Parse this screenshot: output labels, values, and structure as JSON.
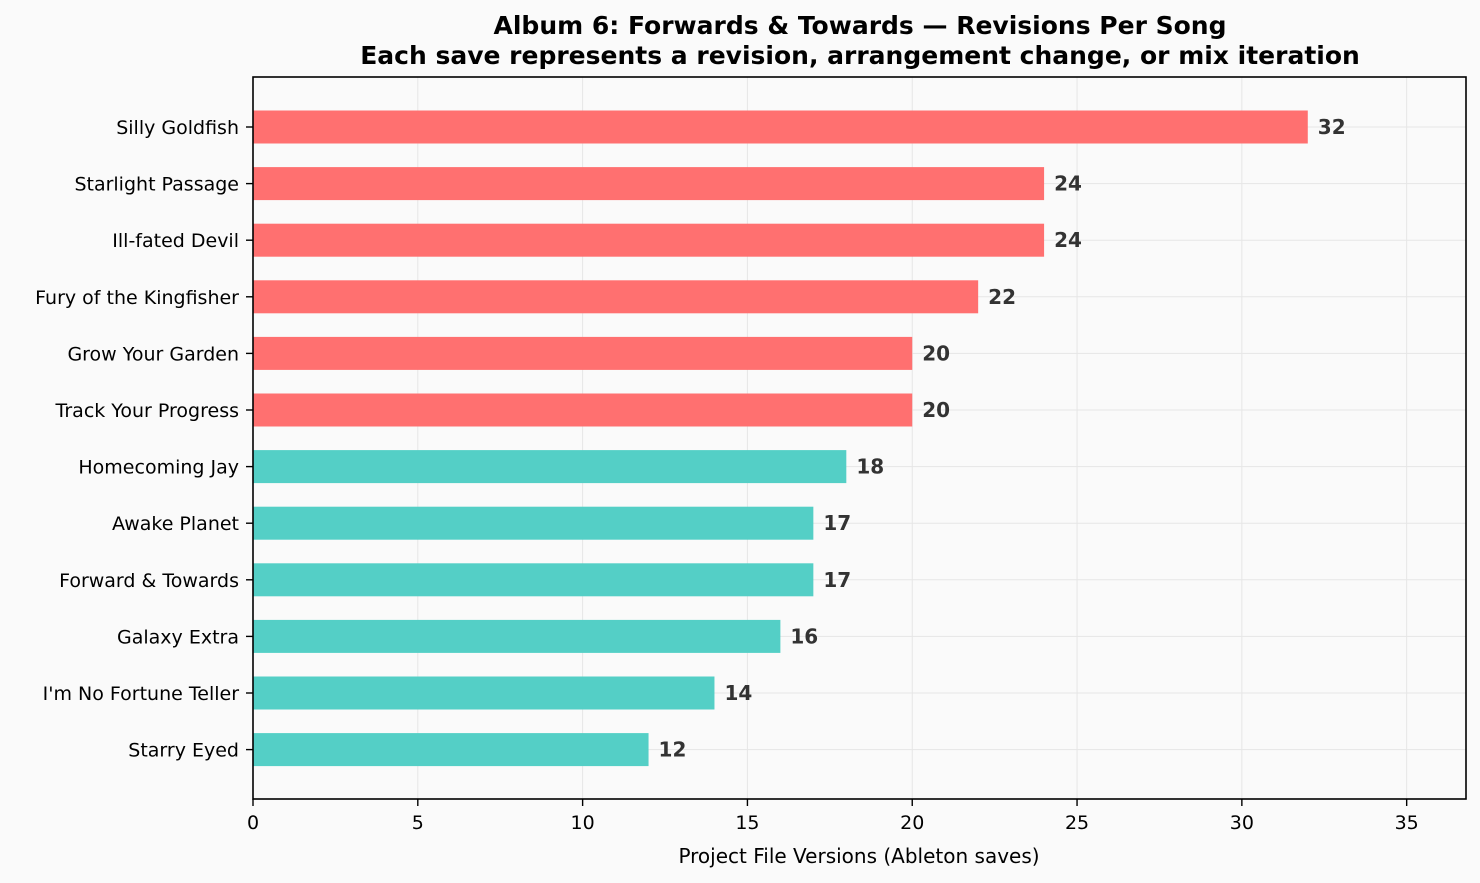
{
  "chart_data": {
    "type": "bar",
    "orientation": "horizontal",
    "title": "Album 6: Forwards & Towards — Revisions Per Song",
    "subtitle": "Each save represents a revision, arrangement change, or mix iteration",
    "xlabel": "Project File Versions (Ableton saves)",
    "ylabel": "",
    "xlim": [
      0,
      36.8
    ],
    "xticks": [
      0,
      5,
      10,
      15,
      20,
      25,
      30,
      35
    ],
    "grid": true,
    "categories": [
      "Silly Goldfish",
      "Starlight Passage",
      "Ill-fated Devil",
      "Fury of the Kingfisher",
      "Grow Your Garden",
      "Track Your Progress",
      "Homecoming Jay",
      "Awake Planet",
      "Forward & Towards",
      "Galaxy Extra",
      "I'm No Fortune Teller",
      "Starry Eyed"
    ],
    "values": [
      32,
      24,
      24,
      22,
      20,
      20,
      18,
      17,
      17,
      16,
      14,
      12
    ],
    "highlight_threshold": 20,
    "colors": {
      "high": "#ff6b6b",
      "normal": "#4ecdc4",
      "background": "#fafafa",
      "grid": "#e6e6e6",
      "value_text": "#333333"
    }
  }
}
